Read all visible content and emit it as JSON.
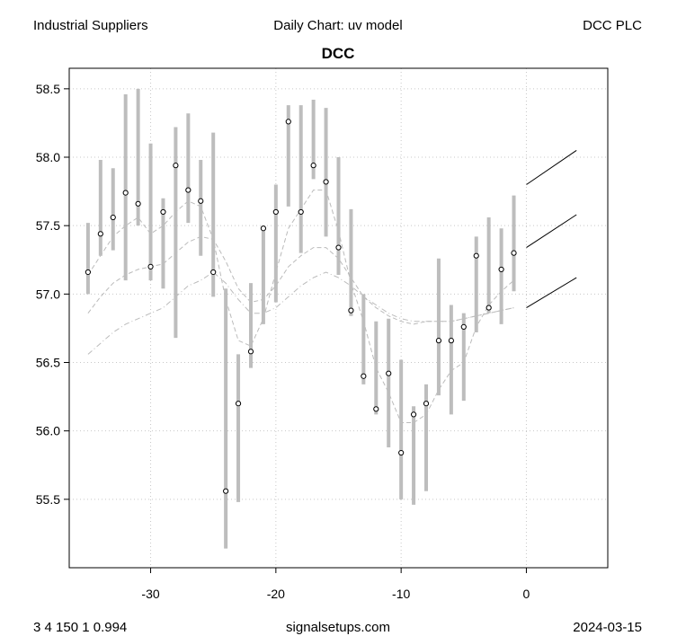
{
  "header": {
    "left": "Industrial Suppliers",
    "center": "Daily Chart: uv model",
    "right": "DCC PLC"
  },
  "footer": {
    "left": "3 4 150 1 0.994",
    "center": "signalsetups.com",
    "right": "2024-03-15"
  },
  "chart_data": {
    "type": "line",
    "title": "DCC",
    "xlabel": "",
    "ylabel": "",
    "xlim": [
      -36.5,
      6.5
    ],
    "ylim": [
      55.0,
      58.65
    ],
    "x_ticks": [
      -30,
      -20,
      -10,
      0
    ],
    "x_tick_labels": [
      "-30",
      "-20",
      "-10",
      "0"
    ],
    "y_ticks": [
      55.5,
      56.0,
      56.5,
      57.0,
      57.5,
      58.0,
      58.5
    ],
    "y_tick_labels": [
      "55.5",
      "56.0",
      "56.5",
      "57.0",
      "57.5",
      "58.0",
      "58.5"
    ],
    "grid": true,
    "colors": {
      "range_bars": "#bdbdbd",
      "bands": "#bbbbbb",
      "forecast": "#000000",
      "grid": "#c8c8c8"
    },
    "ranges": [
      {
        "x": -35,
        "low": 57.0,
        "high": 57.52,
        "close": 57.16
      },
      {
        "x": -34,
        "low": 57.28,
        "high": 57.98,
        "close": 57.44
      },
      {
        "x": -33,
        "low": 57.32,
        "high": 57.92,
        "close": 57.56
      },
      {
        "x": -32,
        "low": 57.1,
        "high": 58.46,
        "close": 57.74
      },
      {
        "x": -31,
        "low": 57.5,
        "high": 58.5,
        "close": 57.66
      },
      {
        "x": -30,
        "low": 57.1,
        "high": 58.1,
        "close": 57.2
      },
      {
        "x": -29,
        "low": 57.04,
        "high": 57.7,
        "close": 57.6
      },
      {
        "x": -28,
        "low": 56.68,
        "high": 58.22,
        "close": 57.94
      },
      {
        "x": -27,
        "low": 57.52,
        "high": 58.32,
        "close": 57.76
      },
      {
        "x": -26,
        "low": 57.28,
        "high": 57.98,
        "close": 57.68
      },
      {
        "x": -25,
        "low": 56.98,
        "high": 58.18,
        "close": 57.16
      },
      {
        "x": -24,
        "low": 55.14,
        "high": 57.04,
        "close": 55.56
      },
      {
        "x": -23,
        "low": 55.48,
        "high": 56.56,
        "close": 56.2
      },
      {
        "x": -22,
        "low": 56.46,
        "high": 57.08,
        "close": 56.58
      },
      {
        "x": -21,
        "low": 56.78,
        "high": 57.5,
        "close": 57.48
      },
      {
        "x": -20,
        "low": 56.94,
        "high": 57.8,
        "close": 57.6
      },
      {
        "x": -19,
        "low": 57.64,
        "high": 58.38,
        "close": 58.26
      },
      {
        "x": -18,
        "low": 57.3,
        "high": 58.38,
        "close": 57.6
      },
      {
        "x": -17,
        "low": 57.84,
        "high": 58.42,
        "close": 57.94
      },
      {
        "x": -16,
        "low": 57.42,
        "high": 58.36,
        "close": 57.82
      },
      {
        "x": -15,
        "low": 57.14,
        "high": 58.0,
        "close": 57.34
      },
      {
        "x": -14,
        "low": 56.84,
        "high": 57.62,
        "close": 56.88
      },
      {
        "x": -13,
        "low": 56.34,
        "high": 57.0,
        "close": 56.4
      },
      {
        "x": -12,
        "low": 56.12,
        "high": 56.8,
        "close": 56.16
      },
      {
        "x": -11,
        "low": 55.88,
        "high": 56.82,
        "close": 56.42
      },
      {
        "x": -10,
        "low": 55.5,
        "high": 56.52,
        "close": 55.84
      },
      {
        "x": -9,
        "low": 55.46,
        "high": 56.18,
        "close": 56.12
      },
      {
        "x": -8,
        "low": 55.56,
        "high": 56.34,
        "close": 56.2
      },
      {
        "x": -7,
        "low": 56.26,
        "high": 57.26,
        "close": 56.66
      },
      {
        "x": -6,
        "low": 56.12,
        "high": 56.92,
        "close": 56.66
      },
      {
        "x": -5,
        "low": 56.22,
        "high": 56.86,
        "close": 56.76
      },
      {
        "x": -4,
        "low": 56.72,
        "high": 57.42,
        "close": 57.28
      },
      {
        "x": -3,
        "low": 56.86,
        "high": 57.56,
        "close": 56.9
      },
      {
        "x": -2,
        "low": 56.78,
        "high": 57.48,
        "close": 57.18
      },
      {
        "x": -1,
        "low": 57.02,
        "high": 57.72,
        "close": 57.3
      }
    ],
    "band_series": [
      {
        "style": "dash",
        "x": [
          -35,
          -34,
          -33,
          -32,
          -31,
          -30,
          -29,
          -28,
          -27,
          -26,
          -25,
          -24,
          -23,
          -22,
          -21,
          -20,
          -19,
          -18,
          -17,
          -16,
          -15,
          -14,
          -13,
          -12,
          -11,
          -10,
          -9,
          -8,
          -7,
          -6,
          -5,
          -4,
          -3,
          -2,
          -1
        ],
        "y": [
          57.14,
          57.28,
          57.42,
          57.5,
          57.56,
          57.44,
          57.5,
          57.6,
          57.68,
          57.64,
          57.4,
          56.96,
          56.66,
          56.62,
          56.82,
          57.16,
          57.48,
          57.62,
          57.76,
          57.76,
          57.46,
          57.08,
          56.8,
          56.46,
          56.28,
          56.06,
          56.06,
          56.12,
          56.3,
          56.44,
          56.5,
          56.76,
          56.92,
          57.02,
          57.1
        ]
      },
      {
        "style": "dash",
        "x": [
          -35,
          -34,
          -33,
          -32,
          -31,
          -30,
          -29,
          -28,
          -27,
          -26,
          -25,
          -24,
          -23,
          -22,
          -21,
          -20,
          -19,
          -18,
          -17,
          -16,
          -15,
          -14,
          -13,
          -12,
          -11,
          -10,
          -9,
          -8,
          -7,
          -6,
          -5,
          -4,
          -3,
          -2,
          -1
        ],
        "y": [
          56.86,
          56.98,
          57.08,
          57.14,
          57.18,
          57.2,
          57.22,
          57.3,
          57.38,
          57.42,
          57.4,
          57.24,
          57.04,
          56.94,
          56.96,
          57.06,
          57.2,
          57.28,
          57.34,
          57.34,
          57.26,
          57.12,
          56.98,
          56.9,
          56.84,
          56.8,
          56.78,
          56.8,
          56.8,
          56.8,
          56.82,
          56.84,
          56.86,
          56.88,
          56.9
        ]
      },
      {
        "style": "dashdot",
        "x": [
          -35,
          -34,
          -33,
          -32,
          -31,
          -30,
          -29,
          -28,
          -27,
          -26,
          -25,
          -24,
          -23,
          -22,
          -21,
          -20,
          -19,
          -18,
          -17,
          -16,
          -15,
          -14,
          -13,
          -12,
          -11,
          -10,
          -9,
          -8,
          -7,
          -6,
          -5,
          -4,
          -3,
          -2,
          -1
        ],
        "y": [
          56.56,
          56.64,
          56.72,
          56.78,
          56.82,
          56.86,
          56.9,
          56.98,
          57.06,
          57.1,
          57.16,
          57.08,
          56.96,
          56.86,
          56.86,
          56.9,
          56.98,
          57.06,
          57.12,
          57.16,
          57.12,
          57.06,
          56.98,
          56.92,
          56.86,
          56.82,
          56.8,
          56.8,
          56.8,
          56.8,
          56.82,
          56.84,
          56.86,
          56.88,
          56.9
        ]
      }
    ],
    "forecast_series": [
      {
        "x": [
          0,
          4
        ],
        "y": [
          57.8,
          58.05
        ]
      },
      {
        "x": [
          0,
          4
        ],
        "y": [
          57.34,
          57.58
        ]
      },
      {
        "x": [
          0,
          4
        ],
        "y": [
          56.9,
          57.12
        ]
      }
    ]
  }
}
